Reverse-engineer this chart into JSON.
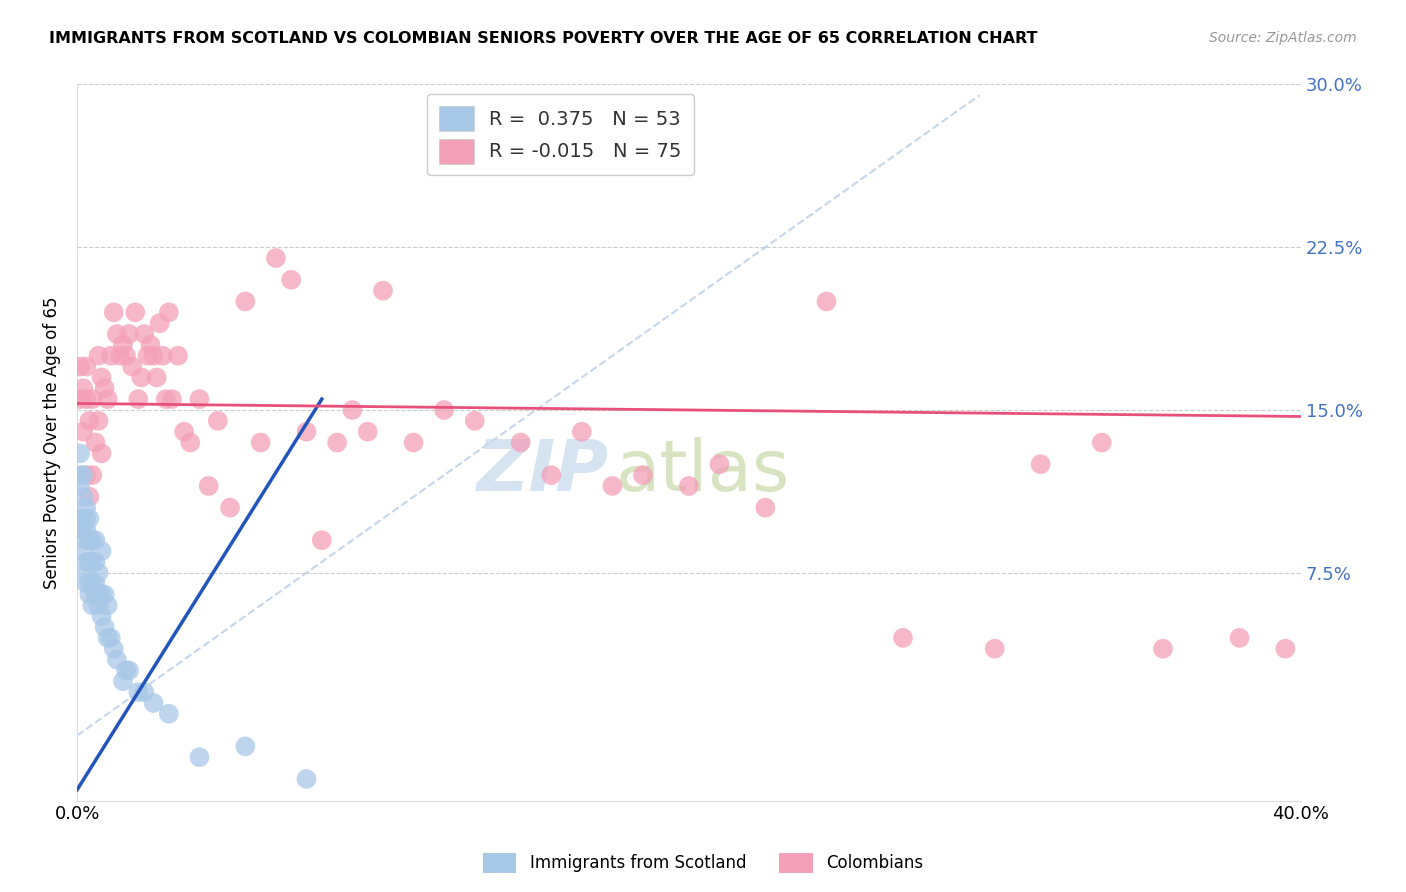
{
  "title": "IMMIGRANTS FROM SCOTLAND VS COLOMBIAN SENIORS POVERTY OVER THE AGE OF 65 CORRELATION CHART",
  "source": "Source: ZipAtlas.com",
  "ylabel": "Seniors Poverty Over the Age of 65",
  "xmin": 0.0,
  "xmax": 0.4,
  "ymin": -0.03,
  "ymax": 0.3,
  "yticks": [
    0.075,
    0.15,
    0.225,
    0.3
  ],
  "ytick_labels": [
    "7.5%",
    "15.0%",
    "22.5%",
    "30.0%"
  ],
  "xticks": [
    0.0,
    0.1,
    0.2,
    0.3,
    0.4
  ],
  "xtick_labels": [
    "0.0%",
    "",
    "",
    "",
    "40.0%"
  ],
  "r_scotland": 0.375,
  "n_scotland": 53,
  "r_colombian": -0.015,
  "n_colombian": 75,
  "scotland_color": "#a8c8e8",
  "colombian_color": "#f4a0b8",
  "scotland_line_color": "#2255bb",
  "colombian_line_color": "#e8507a",
  "watermark_zip": "ZIP",
  "watermark_atlas": "atlas",
  "scotland_points_x": [
    0.001,
    0.001,
    0.001,
    0.001,
    0.001,
    0.002,
    0.002,
    0.002,
    0.002,
    0.002,
    0.003,
    0.003,
    0.003,
    0.003,
    0.003,
    0.003,
    0.003,
    0.004,
    0.004,
    0.004,
    0.004,
    0.004,
    0.005,
    0.005,
    0.005,
    0.005,
    0.006,
    0.006,
    0.006,
    0.006,
    0.007,
    0.007,
    0.007,
    0.008,
    0.008,
    0.008,
    0.009,
    0.009,
    0.01,
    0.01,
    0.011,
    0.012,
    0.013,
    0.015,
    0.016,
    0.017,
    0.02,
    0.022,
    0.025,
    0.03,
    0.04,
    0.055,
    0.075
  ],
  "scotland_points_y": [
    0.095,
    0.1,
    0.115,
    0.12,
    0.13,
    0.085,
    0.095,
    0.1,
    0.11,
    0.12,
    0.07,
    0.075,
    0.08,
    0.09,
    0.095,
    0.1,
    0.105,
    0.065,
    0.07,
    0.08,
    0.09,
    0.1,
    0.06,
    0.07,
    0.08,
    0.09,
    0.065,
    0.07,
    0.08,
    0.09,
    0.06,
    0.065,
    0.075,
    0.055,
    0.065,
    0.085,
    0.05,
    0.065,
    0.045,
    0.06,
    0.045,
    0.04,
    0.035,
    0.025,
    0.03,
    0.03,
    0.02,
    0.02,
    0.015,
    0.01,
    -0.01,
    -0.005,
    -0.02
  ],
  "scotland_line_x": [
    0.0,
    0.08
  ],
  "scotland_line_y": [
    -0.025,
    0.155
  ],
  "colombian_points_x": [
    0.001,
    0.001,
    0.002,
    0.002,
    0.003,
    0.003,
    0.003,
    0.004,
    0.004,
    0.005,
    0.005,
    0.006,
    0.007,
    0.007,
    0.008,
    0.008,
    0.009,
    0.01,
    0.011,
    0.012,
    0.013,
    0.014,
    0.015,
    0.016,
    0.017,
    0.018,
    0.019,
    0.02,
    0.021,
    0.022,
    0.023,
    0.024,
    0.025,
    0.026,
    0.027,
    0.028,
    0.029,
    0.03,
    0.031,
    0.033,
    0.035,
    0.037,
    0.04,
    0.043,
    0.046,
    0.05,
    0.055,
    0.06,
    0.065,
    0.07,
    0.075,
    0.08,
    0.085,
    0.09,
    0.095,
    0.1,
    0.11,
    0.12,
    0.13,
    0.145,
    0.155,
    0.165,
    0.175,
    0.185,
    0.2,
    0.21,
    0.225,
    0.245,
    0.27,
    0.3,
    0.315,
    0.335,
    0.355,
    0.38,
    0.395
  ],
  "colombian_points_y": [
    0.155,
    0.17,
    0.14,
    0.16,
    0.12,
    0.155,
    0.17,
    0.11,
    0.145,
    0.12,
    0.155,
    0.135,
    0.145,
    0.175,
    0.13,
    0.165,
    0.16,
    0.155,
    0.175,
    0.195,
    0.185,
    0.175,
    0.18,
    0.175,
    0.185,
    0.17,
    0.195,
    0.155,
    0.165,
    0.185,
    0.175,
    0.18,
    0.175,
    0.165,
    0.19,
    0.175,
    0.155,
    0.195,
    0.155,
    0.175,
    0.14,
    0.135,
    0.155,
    0.115,
    0.145,
    0.105,
    0.2,
    0.135,
    0.22,
    0.21,
    0.14,
    0.09,
    0.135,
    0.15,
    0.14,
    0.205,
    0.135,
    0.15,
    0.145,
    0.135,
    0.12,
    0.14,
    0.115,
    0.12,
    0.115,
    0.125,
    0.105,
    0.2,
    0.045,
    0.04,
    0.125,
    0.135,
    0.04,
    0.045,
    0.04
  ],
  "colombian_line_x": [
    0.0,
    0.4
  ],
  "colombian_line_y": [
    0.153,
    0.147
  ],
  "diag_line_x": [
    0.0,
    0.295
  ],
  "diag_line_y": [
    0.0,
    0.295
  ]
}
